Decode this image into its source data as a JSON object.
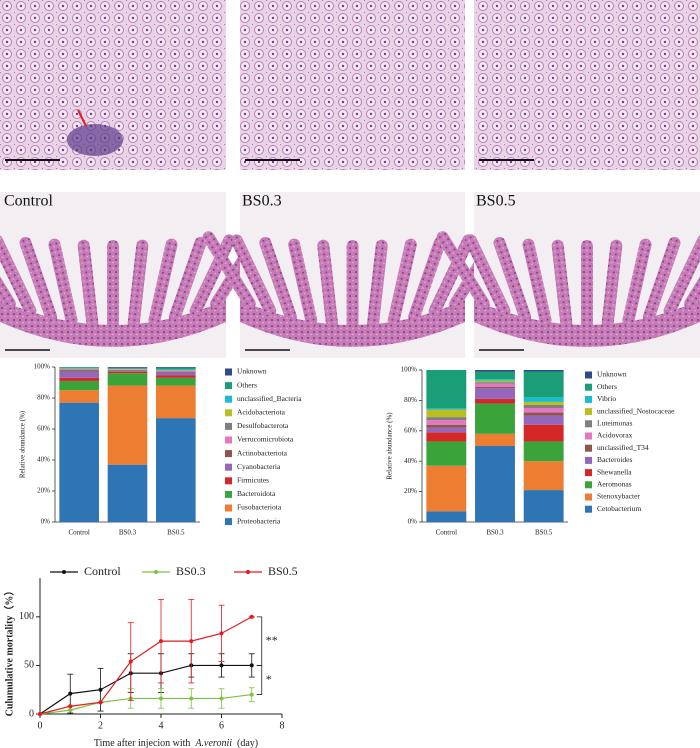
{
  "panel_labels": [
    "Control",
    "BS0.3",
    "BS0.5"
  ],
  "chart_data": [
    {
      "type": "stacked_bar",
      "ylabel": "Relative abundance (%)",
      "categories": [
        "Control",
        "BS0.3",
        "BS0.5"
      ],
      "ylim": [
        0,
        100
      ],
      "yticks": [
        {
          "value": 0,
          "label": "0%"
        },
        {
          "value": 20,
          "label": "20%"
        },
        {
          "value": 40,
          "label": "40%"
        },
        {
          "value": 60,
          "label": "60%"
        },
        {
          "value": 80,
          "label": "80%"
        },
        {
          "value": 100,
          "label": "100%"
        }
      ],
      "series": [
        {
          "name": "Proteobacteria",
          "color": "#2e75b6",
          "values": [
            77,
            37,
            67
          ]
        },
        {
          "name": "Fusobacteriota",
          "color": "#ed7d31",
          "values": [
            8,
            51,
            21
          ]
        },
        {
          "name": "Bacteroidota",
          "color": "#3aa33a",
          "values": [
            6,
            8,
            5
          ]
        },
        {
          "name": "Firmicutes",
          "color": "#d62728",
          "values": [
            2,
            1,
            1.5
          ]
        },
        {
          "name": "Cyanobacteria",
          "color": "#9467bd",
          "values": [
            4,
            0.5,
            2
          ]
        },
        {
          "name": "Actinobacteriota",
          "color": "#8c564b",
          "values": [
            1,
            0.5,
            0.5
          ]
        },
        {
          "name": "Verrucomicrobiota",
          "color": "#e377c2",
          "values": [
            0.5,
            0.3,
            0.5
          ]
        },
        {
          "name": "Desulfobacterota",
          "color": "#7f7f7f",
          "values": [
            0.3,
            0.2,
            0.3
          ]
        },
        {
          "name": "Acidobacteriota",
          "color": "#bcbd22",
          "values": [
            0.2,
            0.2,
            0.2
          ]
        },
        {
          "name": "unclassified_Bacteria",
          "color": "#17becf",
          "values": [
            0.5,
            0.2,
            0.5
          ]
        },
        {
          "name": "Others",
          "color": "#1a9e77",
          "values": [
            0.5,
            0.6,
            1
          ]
        },
        {
          "name": "Unknown",
          "color": "#2f4b8a",
          "values": [
            0,
            0.5,
            0.5
          ]
        }
      ]
    },
    {
      "type": "stacked_bar",
      "ylabel": "Relative abundance (%)",
      "categories": [
        "Control",
        "BS0.3",
        "BS0.5"
      ],
      "ylim": [
        0,
        100
      ],
      "yticks": [
        {
          "value": 0,
          "label": "0%"
        },
        {
          "value": 20,
          "label": "20%"
        },
        {
          "value": 40,
          "label": "40%"
        },
        {
          "value": 60,
          "label": "60%"
        },
        {
          "value": 80,
          "label": "80%"
        },
        {
          "value": 100,
          "label": "100%"
        }
      ],
      "series": [
        {
          "name": "Cetobacterium",
          "color": "#2e75b6",
          "values": [
            7,
            50,
            21
          ]
        },
        {
          "name": "Stenoxybacter",
          "color": "#ed7d31",
          "values": [
            30,
            8,
            19
          ]
        },
        {
          "name": "Aeromonas",
          "color": "#3aa33a",
          "values": [
            16,
            20,
            13
          ]
        },
        {
          "name": "Shewanella",
          "color": "#d62728",
          "values": [
            6,
            3,
            11
          ]
        },
        {
          "name": "Bacteroides",
          "color": "#9467bd",
          "values": [
            3,
            7,
            6
          ]
        },
        {
          "name": "unclassified_T34",
          "color": "#8c564b",
          "values": [
            2,
            1,
            2
          ]
        },
        {
          "name": "Acidovorax",
          "color": "#e377c2",
          "values": [
            3,
            2,
            3
          ]
        },
        {
          "name": "Luteimonas",
          "color": "#7f7f7f",
          "values": [
            2,
            1,
            2
          ]
        },
        {
          "name": "unclassified_Nostocaceae",
          "color": "#bcbd22",
          "values": [
            5,
            1,
            2
          ]
        },
        {
          "name": "Vibrio",
          "color": "#17becf",
          "values": [
            1,
            1,
            3
          ]
        },
        {
          "name": "Others",
          "color": "#1a9e77",
          "values": [
            25,
            5,
            17
          ]
        },
        {
          "name": "Unknown",
          "color": "#2f4b8a",
          "values": [
            0,
            1,
            1
          ]
        }
      ]
    },
    {
      "type": "line",
      "ylabel": "Culumulative mortality（%）",
      "xlabel": [
        "Time after injecion with",
        "A.veronii",
        "(day)"
      ],
      "x": [
        0,
        1,
        2,
        3,
        4,
        5,
        6,
        7
      ],
      "xlim": [
        0,
        8
      ],
      "xticks": [
        0,
        2,
        4,
        6,
        8
      ],
      "ylim": [
        0,
        140
      ],
      "yticks": [
        0,
        50,
        100
      ],
      "annotations": [
        "**",
        "*"
      ],
      "series": [
        {
          "name": "Control",
          "color": "#111111",
          "values": [
            0,
            21,
            25,
            42,
            42,
            50,
            50,
            50
          ],
          "errors": [
            0,
            20,
            22,
            20,
            20,
            12,
            12,
            12
          ]
        },
        {
          "name": "BS0.3",
          "color": "#7fc241",
          "values": [
            0,
            4,
            12,
            16,
            16,
            16,
            16,
            20
          ],
          "errors": [
            0,
            0,
            0,
            10,
            10,
            10,
            10,
            7
          ]
        },
        {
          "name": "BS0.5",
          "color": "#e41a1c",
          "values": [
            0,
            8,
            12,
            54,
            75,
            75,
            83,
            100
          ],
          "errors": [
            0,
            0,
            0,
            40,
            43,
            43,
            29,
            0
          ]
        }
      ]
    }
  ]
}
